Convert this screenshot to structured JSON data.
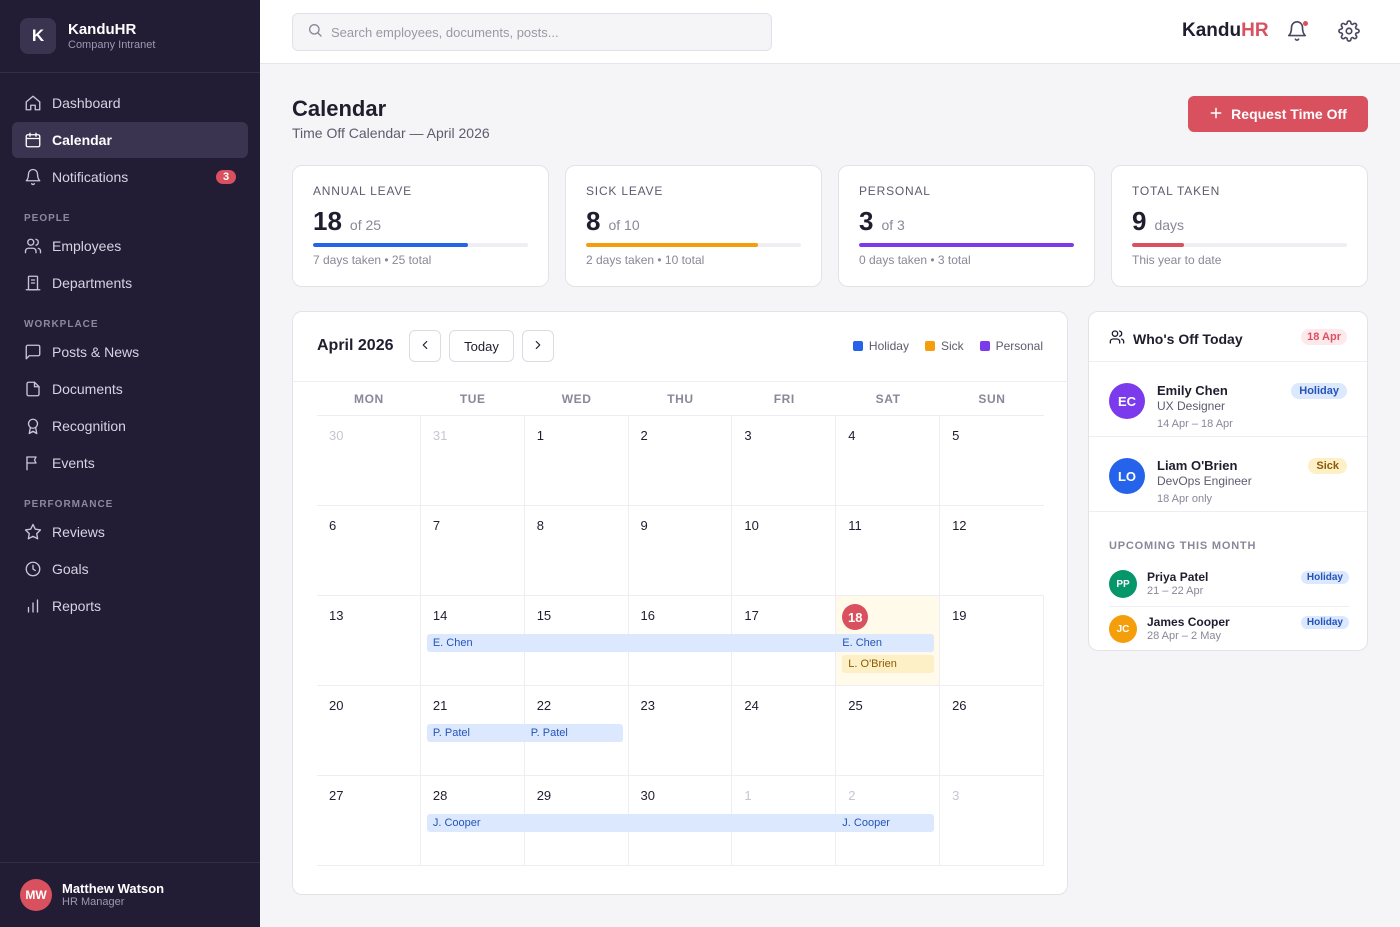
{
  "brand": {
    "logo_letter": "K",
    "name": "KanduHR",
    "subtitle": "Company Intranet"
  },
  "sidebar": {
    "main_items": [
      {
        "label": "Dashboard",
        "icon": "home-icon"
      },
      {
        "label": "Calendar",
        "icon": "calendar-icon",
        "active": true
      },
      {
        "label": "Notifications",
        "icon": "bell-icon",
        "badge": "3"
      }
    ],
    "sections": [
      {
        "title": "PEOPLE",
        "items": [
          {
            "label": "Employees",
            "icon": "users-icon"
          },
          {
            "label": "Departments",
            "icon": "building-icon"
          }
        ]
      },
      {
        "title": "WORKPLACE",
        "items": [
          {
            "label": "Posts & News",
            "icon": "chat-icon"
          },
          {
            "label": "Documents",
            "icon": "document-icon"
          },
          {
            "label": "Recognition",
            "icon": "award-icon"
          },
          {
            "label": "Events",
            "icon": "flag-icon"
          }
        ]
      },
      {
        "title": "PERFORMANCE",
        "items": [
          {
            "label": "Reviews",
            "icon": "star-icon"
          },
          {
            "label": "Goals",
            "icon": "clock-icon"
          },
          {
            "label": "Reports",
            "icon": "bar-chart-icon"
          }
        ]
      }
    ],
    "user": {
      "initials": "MW",
      "name": "Matthew Watson",
      "role": "HR Manager"
    }
  },
  "topbar": {
    "search_placeholder": "Search employees, documents, posts...",
    "brand_left": "Kandu",
    "brand_right": "HR"
  },
  "page": {
    "title": "Calendar",
    "subtitle": "Time Off Calendar — April 2026",
    "primary_button": "Request Time Off"
  },
  "stats": [
    {
      "label": "ANNUAL LEAVE",
      "value": "18",
      "of": "of 25",
      "fill": 0.72,
      "color": "#2563eb",
      "foot": "7 days taken • 25 total"
    },
    {
      "label": "SICK LEAVE",
      "value": "8",
      "of": "of 10",
      "fill": 0.8,
      "color": "#f59e0b",
      "foot": "2 days taken • 10 total"
    },
    {
      "label": "PERSONAL",
      "value": "3",
      "of": "of 3",
      "fill": 1.0,
      "color": "#7c3aed",
      "foot": "0 days taken • 3 total"
    },
    {
      "label": "TOTAL TAKEN",
      "value": "9",
      "of": "days",
      "fill": 0.24,
      "color": "#d9505e",
      "foot": "This year to date"
    }
  ],
  "calendar": {
    "month_label": "April 2026",
    "today_button": "Today",
    "legend": [
      {
        "label": "Holiday",
        "color": "#2563eb"
      },
      {
        "label": "Sick",
        "color": "#f59e0b"
      },
      {
        "label": "Personal",
        "color": "#7c3aed"
      }
    ],
    "weekdays": [
      "MON",
      "TUE",
      "WED",
      "THU",
      "FRI",
      "SAT",
      "SUN"
    ],
    "weeks": [
      [
        {
          "d": "30",
          "muted": true
        },
        {
          "d": "31",
          "muted": true
        },
        {
          "d": "1"
        },
        {
          "d": "2"
        },
        {
          "d": "3"
        },
        {
          "d": "4"
        },
        {
          "d": "5"
        }
      ],
      [
        {
          "d": "6"
        },
        {
          "d": "7"
        },
        {
          "d": "8"
        },
        {
          "d": "9"
        },
        {
          "d": "10"
        },
        {
          "d": "11"
        },
        {
          "d": "12"
        }
      ],
      [
        {
          "d": "13"
        },
        {
          "d": "14"
        },
        {
          "d": "15"
        },
        {
          "d": "16"
        },
        {
          "d": "17"
        },
        {
          "d": "18",
          "today": true
        },
        {
          "d": "19"
        }
      ],
      [
        {
          "d": "20"
        },
        {
          "d": "21"
        },
        {
          "d": "22"
        },
        {
          "d": "23"
        },
        {
          "d": "24"
        },
        {
          "d": "25"
        },
        {
          "d": "26"
        }
      ],
      [
        {
          "d": "27"
        },
        {
          "d": "28"
        },
        {
          "d": "29"
        },
        {
          "d": "30"
        },
        {
          "d": "1",
          "muted": true
        },
        {
          "d": "2",
          "muted": true
        },
        {
          "d": "3",
          "muted": true
        }
      ]
    ],
    "events": [
      {
        "week": 2,
        "start": 1,
        "end": 5,
        "type": "holiday",
        "labels": [
          "E. Chen",
          "",
          "",
          "",
          "E. Chen"
        ],
        "slot": 0
      },
      {
        "week": 2,
        "start": 5,
        "end": 5,
        "type": "sick",
        "labels": [
          "L. O'Brien"
        ],
        "slot": 1
      },
      {
        "week": 3,
        "start": 1,
        "end": 2,
        "type": "holiday",
        "labels": [
          "P. Patel",
          "P. Patel"
        ],
        "slot": 0
      },
      {
        "week": 4,
        "start": 1,
        "end": 5,
        "type": "holiday",
        "labels": [
          "J. Cooper",
          "",
          "",
          "",
          "J. Cooper"
        ],
        "slot": 0
      }
    ]
  },
  "whos_off": {
    "title": "Who's Off Today",
    "date_chip": "18 Apr",
    "people": [
      {
        "initials": "EC",
        "name": "Emily Chen",
        "role": "UX Designer",
        "dates": "14 Apr – 18 Apr",
        "tag": "Holiday",
        "tag_type": "holiday",
        "color": "#7c3aed"
      },
      {
        "initials": "LO",
        "name": "Liam O'Brien",
        "role": "DevOps Engineer",
        "dates": "18 Apr only",
        "tag": "Sick",
        "tag_type": "sick",
        "color": "#2563eb"
      }
    ],
    "upcoming_label": "UPCOMING THIS MONTH",
    "upcoming": [
      {
        "initials": "PP",
        "name": "Priya Patel",
        "dates": "21 – 22 Apr",
        "tag": "Holiday",
        "color": "#059669"
      },
      {
        "initials": "JC",
        "name": "James Cooper",
        "dates": "28 Apr – 2 May",
        "tag": "Holiday",
        "color": "#f59e0b"
      }
    ]
  }
}
